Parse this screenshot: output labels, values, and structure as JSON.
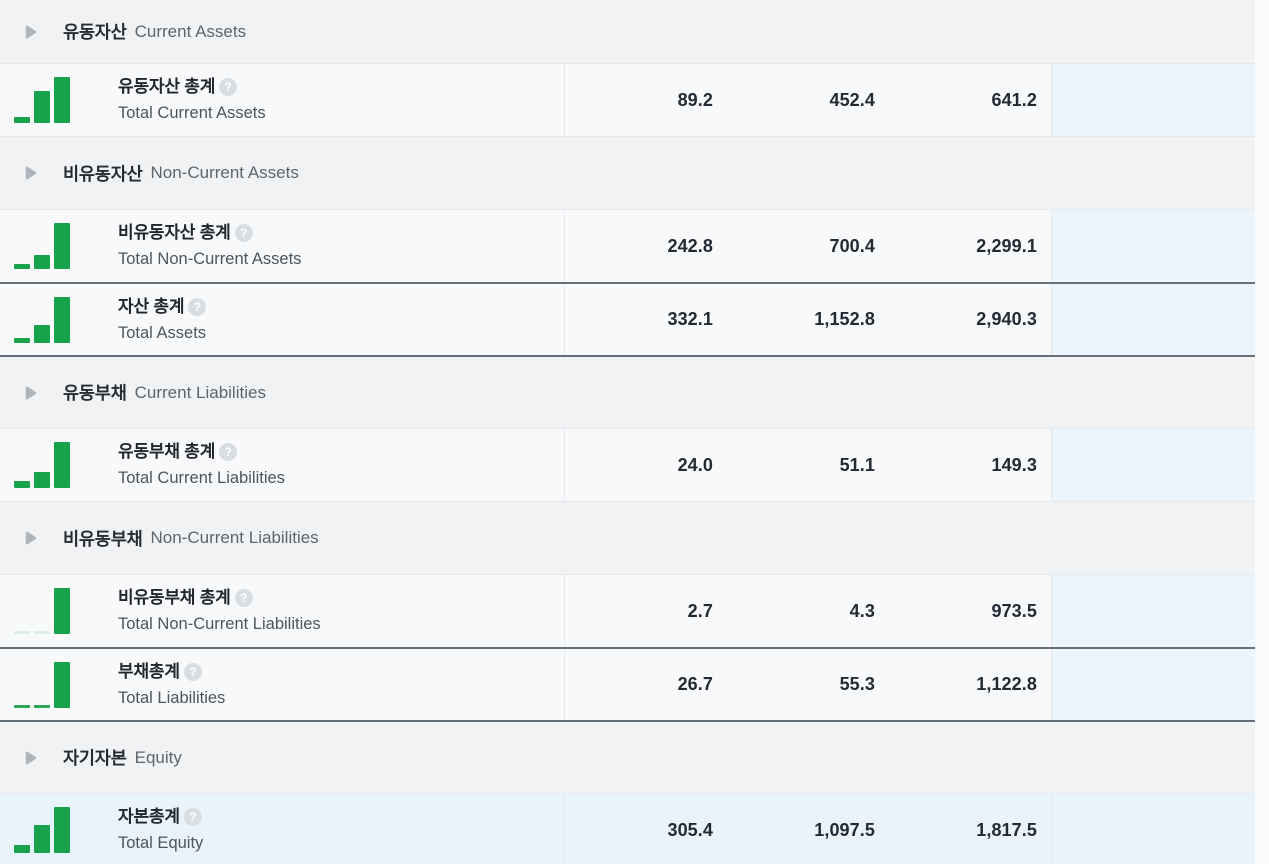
{
  "table": {
    "sections": [
      {
        "id": "current-assets",
        "kor": "유동자산",
        "eng": "Current Assets",
        "rows": [
          {
            "id": "total-current-assets",
            "kor": "유동자산 총계",
            "eng": "Total Current Assets",
            "values": [
              "89.2",
              "452.4",
              "641.2"
            ],
            "raw": [
              89.2,
              452.4,
              641.2
            ],
            "emphasis": false,
            "highlight": false
          }
        ]
      },
      {
        "id": "non-current-assets",
        "kor": "비유동자산",
        "eng": "Non-Current Assets",
        "rows": [
          {
            "id": "total-non-current-assets",
            "kor": "비유동자산 총계",
            "eng": "Total Non-Current Assets",
            "values": [
              "242.8",
              "700.4",
              "2,299.1"
            ],
            "raw": [
              242.8,
              700.4,
              2299.1
            ],
            "emphasis": false,
            "highlight": false
          },
          {
            "id": "total-assets",
            "kor": "자산 총계",
            "eng": "Total Assets",
            "values": [
              "332.1",
              "1,152.8",
              "2,940.3"
            ],
            "raw": [
              332.1,
              1152.8,
              2940.3
            ],
            "emphasis": true,
            "highlight": false
          }
        ]
      },
      {
        "id": "current-liabilities",
        "kor": "유동부채",
        "eng": "Current Liabilities",
        "rows": [
          {
            "id": "total-current-liabilities",
            "kor": "유동부채 총계",
            "eng": "Total Current Liabilities",
            "values": [
              "24.0",
              "51.1",
              "149.3"
            ],
            "raw": [
              24.0,
              51.1,
              149.3
            ],
            "emphasis": false,
            "highlight": false
          }
        ]
      },
      {
        "id": "non-current-liabilities",
        "kor": "비유동부채",
        "eng": "Non-Current Liabilities",
        "rows": [
          {
            "id": "total-non-current-liabilities",
            "kor": "비유동부채 총계",
            "eng": "Total Non-Current Liabilities",
            "values": [
              "2.7",
              "4.3",
              "973.5"
            ],
            "raw": [
              2.7,
              4.3,
              973.5
            ],
            "emphasis": false,
            "highlight": false
          },
          {
            "id": "total-liabilities",
            "kor": "부채총계",
            "eng": "Total Liabilities",
            "values": [
              "26.7",
              "55.3",
              "1,122.8"
            ],
            "raw": [
              26.7,
              55.3,
              1122.8
            ],
            "emphasis": true,
            "highlight": false
          }
        ]
      },
      {
        "id": "equity",
        "kor": "자기자본",
        "eng": "Equity",
        "rows": [
          {
            "id": "total-equity",
            "kor": "자본총계",
            "eng": "Total Equity",
            "values": [
              "305.4",
              "1,097.5",
              "1,817.5"
            ],
            "raw": [
              305.4,
              1097.5,
              1817.5
            ],
            "emphasis": false,
            "highlight": true
          }
        ]
      }
    ]
  },
  "icons": {
    "help_glyph": "?",
    "caret_icon": "triangle-right",
    "mini_bar_chart_icon": "bar-chart"
  },
  "colors": {
    "bar_green": "#18a24b",
    "bar_green_ghost": "#ddefe4",
    "section_header_bg": "#f0f2f4",
    "row_bg": "#f8f9fa",
    "extra_column_bg": "#ecf5fc",
    "row_highlight_bg": "#e9f3fc",
    "emphasis_border": "#66707b",
    "light_border": "#e6e9ed",
    "caret_gray": "#aeb5bc"
  }
}
